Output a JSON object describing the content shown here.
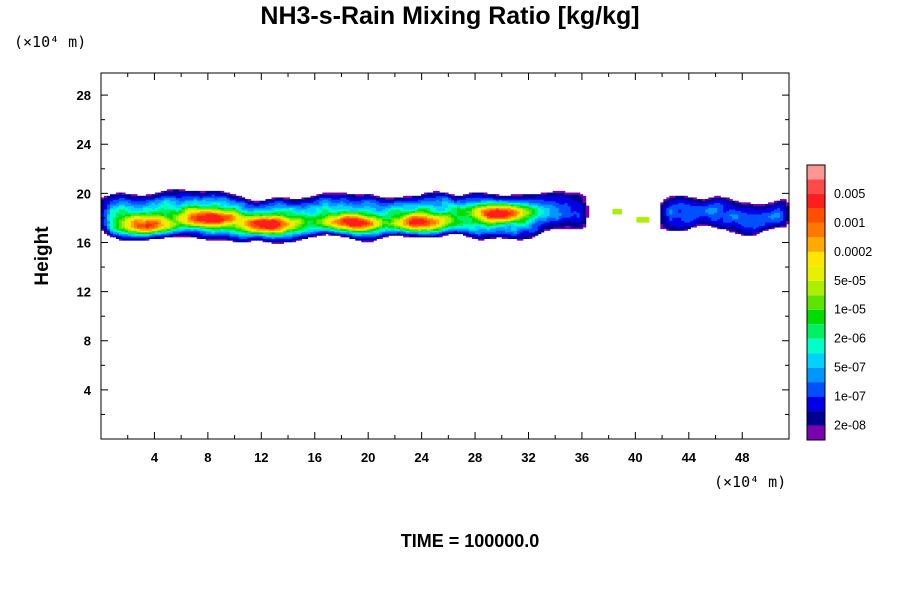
{
  "chart_data": {
    "type": "heatmap",
    "title": "NH3-s-Rain Mixing Ratio [kg/kg]",
    "xlabel": "",
    "ylabel": "Height",
    "x_unit_label": "(×10⁴ m)",
    "y_unit_label": "(×10⁴ m)",
    "x_ticks": [
      4,
      8,
      12,
      16,
      20,
      24,
      28,
      32,
      36,
      40,
      44,
      48
    ],
    "y_ticks": [
      4,
      8,
      12,
      16,
      20,
      24,
      28
    ],
    "xlim": [
      0,
      51.5
    ],
    "ylim": [
      0,
      29.8
    ],
    "grid": false,
    "legend_placement": "right",
    "levels": [
      {
        "label": "",
        "color": "#7b00b0"
      },
      {
        "label": "2e-08",
        "color": "#000090"
      },
      {
        "label": "",
        "color": "#0000e6"
      },
      {
        "label": "1e-07",
        "color": "#0050ff"
      },
      {
        "label": "",
        "color": "#0096ff"
      },
      {
        "label": "5e-07",
        "color": "#00d2ff"
      },
      {
        "label": "",
        "color": "#00ffc8"
      },
      {
        "label": "2e-06",
        "color": "#00f064"
      },
      {
        "label": "",
        "color": "#00dc00"
      },
      {
        "label": "1e-05",
        "color": "#5ae600"
      },
      {
        "label": "",
        "color": "#aaf000"
      },
      {
        "label": "5e-05",
        "color": "#e6f000"
      },
      {
        "label": "",
        "color": "#ffe600"
      },
      {
        "label": "0.0002",
        "color": "#ffaa00"
      },
      {
        "label": "",
        "color": "#ff7800"
      },
      {
        "label": "0.001",
        "color": "#ff5000"
      },
      {
        "label": "",
        "color": "#ff1e1e"
      },
      {
        "label": "0.005",
        "color": "#ff4a4a"
      },
      {
        "label": "",
        "color": "#ff9696"
      }
    ],
    "cloud_layer": {
      "main_band_x": [
        0,
        36.5
      ],
      "main_band_y": [
        16.2,
        20.2
      ],
      "isolated_patches_x": [
        [
          38.5,
          41
        ]
      ],
      "right_band_x": [
        41.8,
        51.5
      ],
      "right_band_y": [
        16.8,
        19.8
      ],
      "max_level_index": 16,
      "peak_centers": [
        [
          3.5,
          17.3
        ],
        [
          8,
          18
        ],
        [
          12.5,
          17.5
        ],
        [
          18.5,
          17.5
        ],
        [
          24,
          17.5
        ],
        [
          30,
          18.5
        ]
      ]
    }
  },
  "time_label": "TIME = 100000.0"
}
